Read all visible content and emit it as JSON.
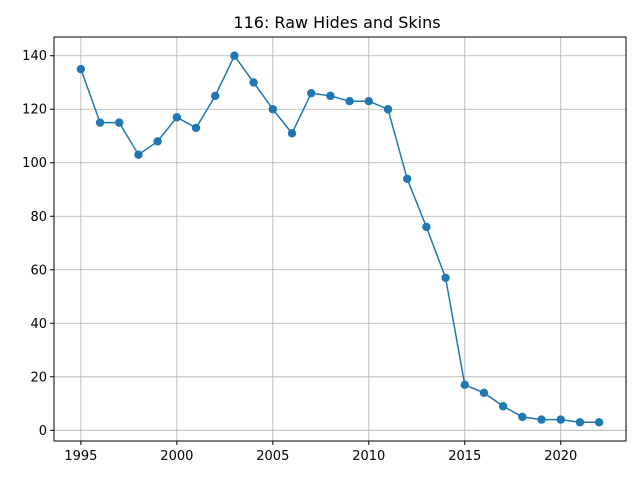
{
  "chart_data": {
    "type": "line",
    "title": "116: Raw Hides and Skins",
    "xlabel": "",
    "ylabel": "",
    "xlim": [
      1993.6,
      2023.4
    ],
    "ylim": [
      -4,
      147
    ],
    "xticks": [
      1995,
      2000,
      2005,
      2010,
      2015,
      2020
    ],
    "yticks": [
      0,
      20,
      40,
      60,
      80,
      100,
      120,
      140
    ],
    "grid": true,
    "color": "#1f77b4",
    "series": [
      {
        "x": [
          1995,
          1996,
          1997,
          1998,
          1999,
          2000,
          2001,
          2002,
          2003,
          2004,
          2005,
          2006,
          2007,
          2008,
          2009,
          2010,
          2011,
          2012,
          2013,
          2014,
          2015,
          2016,
          2017,
          2018,
          2019,
          2020,
          2021,
          2022
        ],
        "y": [
          135,
          115,
          115,
          103,
          108,
          117,
          113,
          125,
          140,
          130,
          120,
          111,
          126,
          125,
          123,
          123,
          120,
          94,
          76,
          57,
          17,
          14,
          9,
          5,
          4,
          4,
          3,
          3
        ]
      }
    ]
  }
}
